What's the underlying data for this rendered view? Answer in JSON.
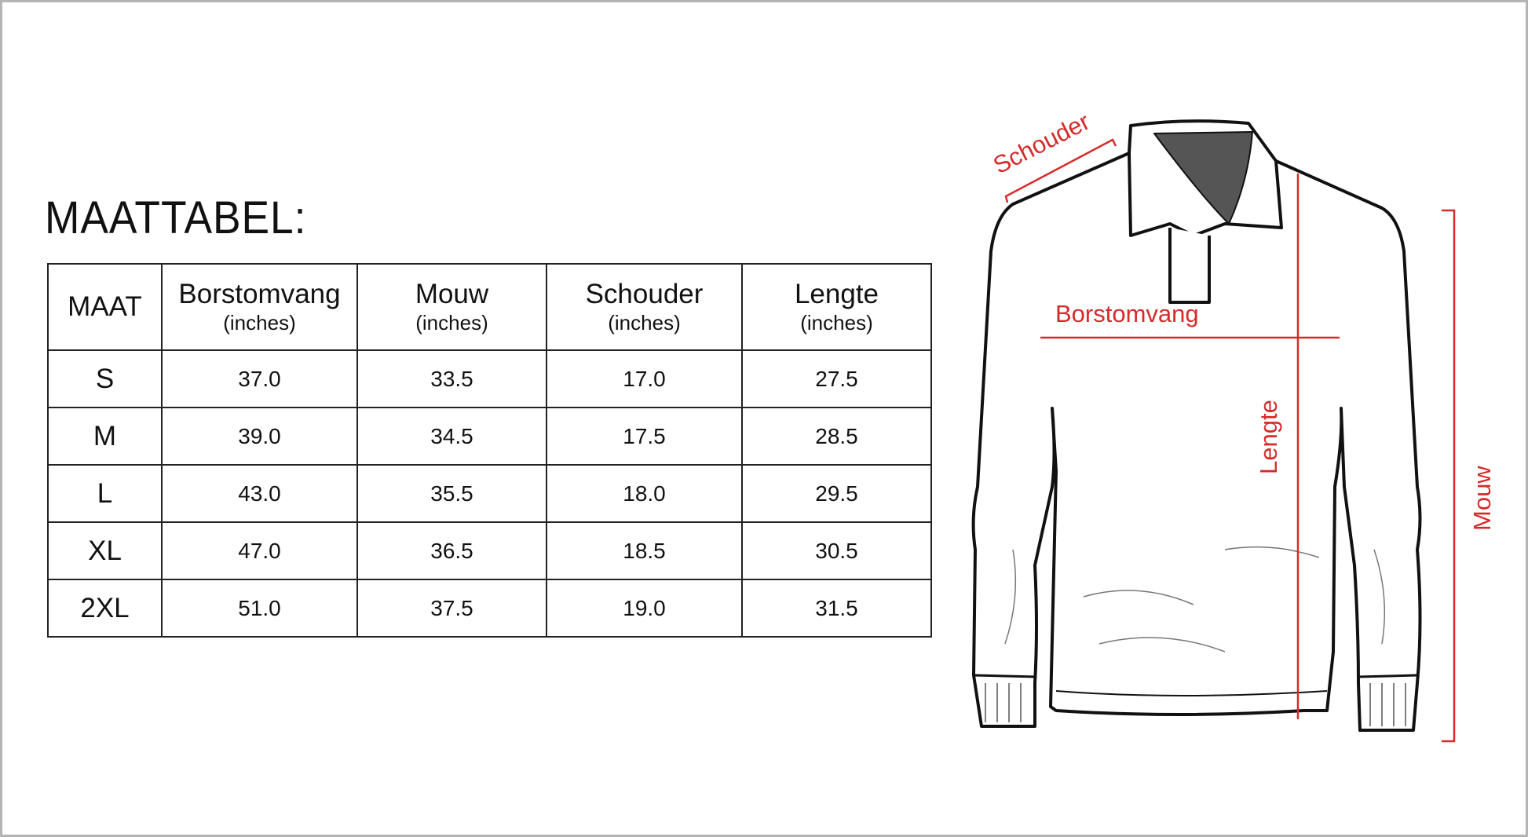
{
  "title": "MAATTABEL:",
  "table": {
    "headers": [
      {
        "label": "MAAT",
        "unit": ""
      },
      {
        "label": "Borstomvang",
        "unit": "(inches)"
      },
      {
        "label": "Mouw",
        "unit": "(inches)"
      },
      {
        "label": "Schouder",
        "unit": "(inches)"
      },
      {
        "label": "Lengte",
        "unit": "(inches)"
      }
    ],
    "rows": [
      [
        "S",
        "37.0",
        "33.5",
        "17.0",
        "27.5"
      ],
      [
        "M",
        "39.0",
        "34.5",
        "17.5",
        "28.5"
      ],
      [
        "L",
        "43.0",
        "35.5",
        "18.0",
        "29.5"
      ],
      [
        "XL",
        "47.0",
        "36.5",
        "18.5",
        "30.5"
      ],
      [
        "2XL",
        "51.0",
        "37.5",
        "19.0",
        "31.5"
      ]
    ]
  },
  "diagram": {
    "labels": {
      "shoulder": "Schouder",
      "chest": "Borstomvang",
      "length": "Lengte",
      "sleeve": "Mouw"
    },
    "accent_color": "#d62b2b"
  }
}
